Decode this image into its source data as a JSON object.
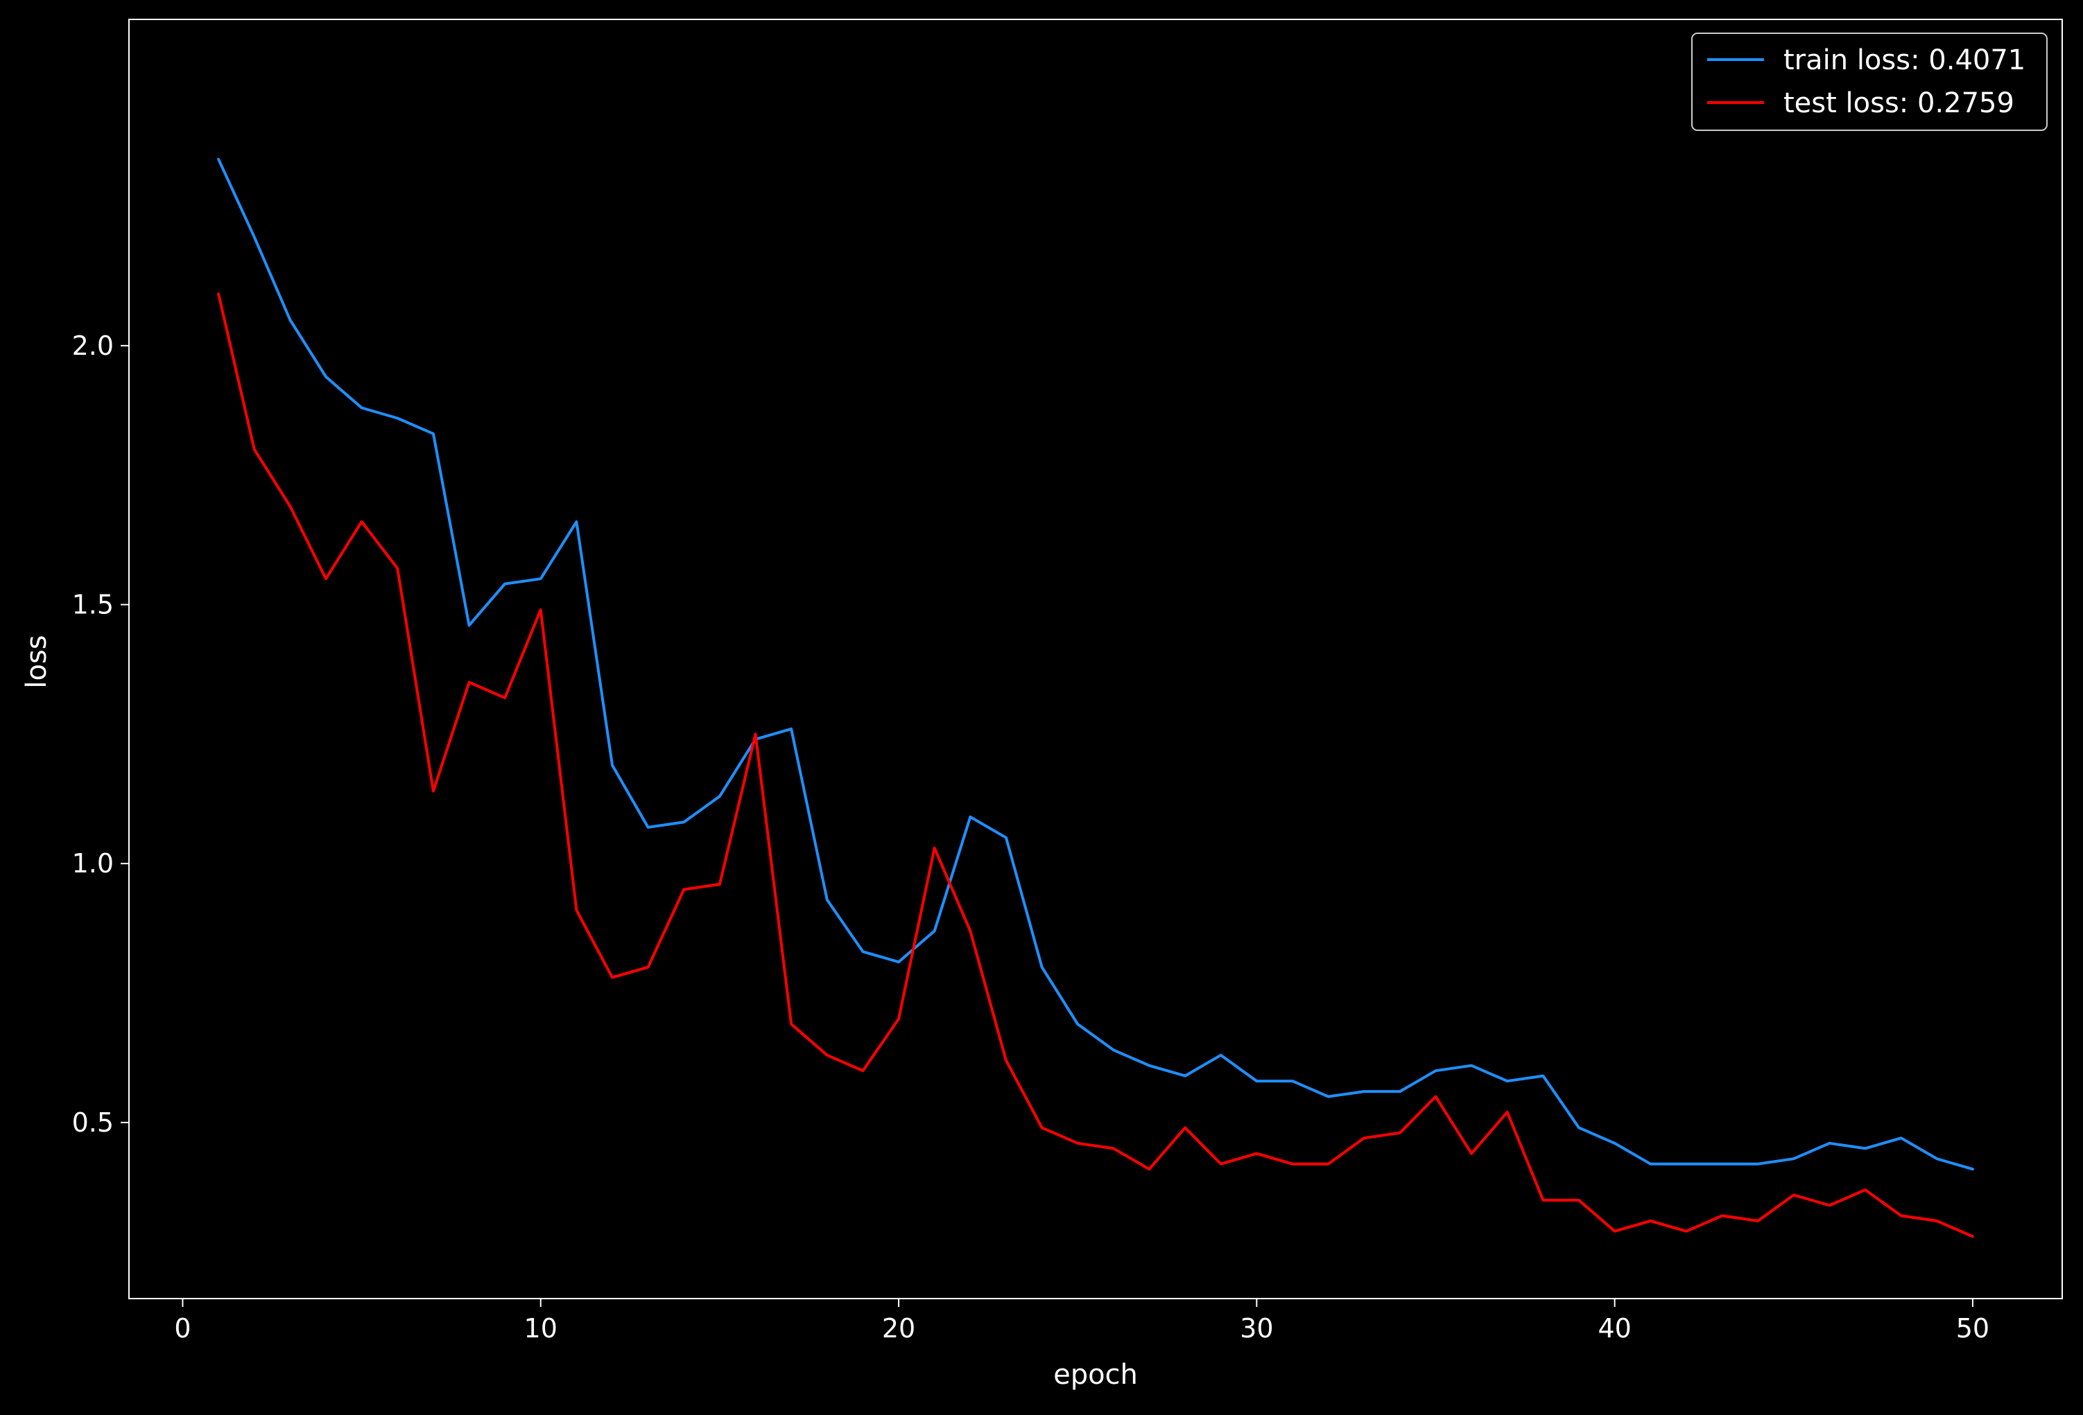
{
  "chart_data": {
    "type": "line",
    "xlabel": "epoch",
    "ylabel": "loss",
    "xlim": [
      -1.5,
      52.5
    ],
    "ylim": [
      0.16,
      2.63
    ],
    "xticks": [
      0,
      10,
      20,
      30,
      40,
      50
    ],
    "yticks": [
      0.5,
      1.0,
      1.5,
      2.0
    ],
    "xtick_labels": [
      "0",
      "10",
      "20",
      "30",
      "40",
      "50"
    ],
    "ytick_labels": [
      "0.5",
      "1.0",
      "1.5",
      "2.0"
    ],
    "grid": false,
    "legend_position": "top-right",
    "background": "#000000",
    "x": [
      1,
      2,
      3,
      4,
      5,
      6,
      7,
      8,
      9,
      10,
      11,
      12,
      13,
      14,
      15,
      16,
      17,
      18,
      19,
      20,
      21,
      22,
      23,
      24,
      25,
      26,
      27,
      28,
      29,
      30,
      31,
      32,
      33,
      34,
      35,
      36,
      37,
      38,
      39,
      40,
      41,
      42,
      43,
      44,
      45,
      46,
      47,
      48,
      49,
      50
    ],
    "series": [
      {
        "name": "train loss: 0.4071",
        "color": "#1e90ff",
        "values": [
          2.36,
          2.21,
          2.05,
          1.94,
          1.88,
          1.86,
          1.83,
          1.46,
          1.54,
          1.55,
          1.66,
          1.19,
          1.07,
          1.08,
          1.13,
          1.24,
          1.26,
          0.93,
          0.83,
          0.81,
          0.87,
          1.09,
          1.05,
          0.8,
          0.69,
          0.64,
          0.61,
          0.59,
          0.63,
          0.58,
          0.58,
          0.55,
          0.56,
          0.56,
          0.6,
          0.61,
          0.58,
          0.59,
          0.49,
          0.46,
          0.42,
          0.42,
          0.42,
          0.42,
          0.43,
          0.46,
          0.45,
          0.47,
          0.43,
          0.41
        ]
      },
      {
        "name": "test loss: 0.2759",
        "color": "#ff0000",
        "values": [
          2.1,
          1.8,
          1.69,
          1.55,
          1.66,
          1.57,
          1.14,
          1.35,
          1.32,
          1.49,
          0.91,
          0.78,
          0.8,
          0.95,
          0.96,
          1.25,
          0.69,
          0.63,
          0.6,
          0.7,
          1.03,
          0.87,
          0.62,
          0.49,
          0.46,
          0.45,
          0.41,
          0.49,
          0.42,
          0.44,
          0.42,
          0.42,
          0.47,
          0.48,
          0.55,
          0.44,
          0.52,
          0.35,
          0.35,
          0.29,
          0.31,
          0.29,
          0.32,
          0.31,
          0.36,
          0.34,
          0.37,
          0.32,
          0.31,
          0.28
        ]
      }
    ]
  }
}
